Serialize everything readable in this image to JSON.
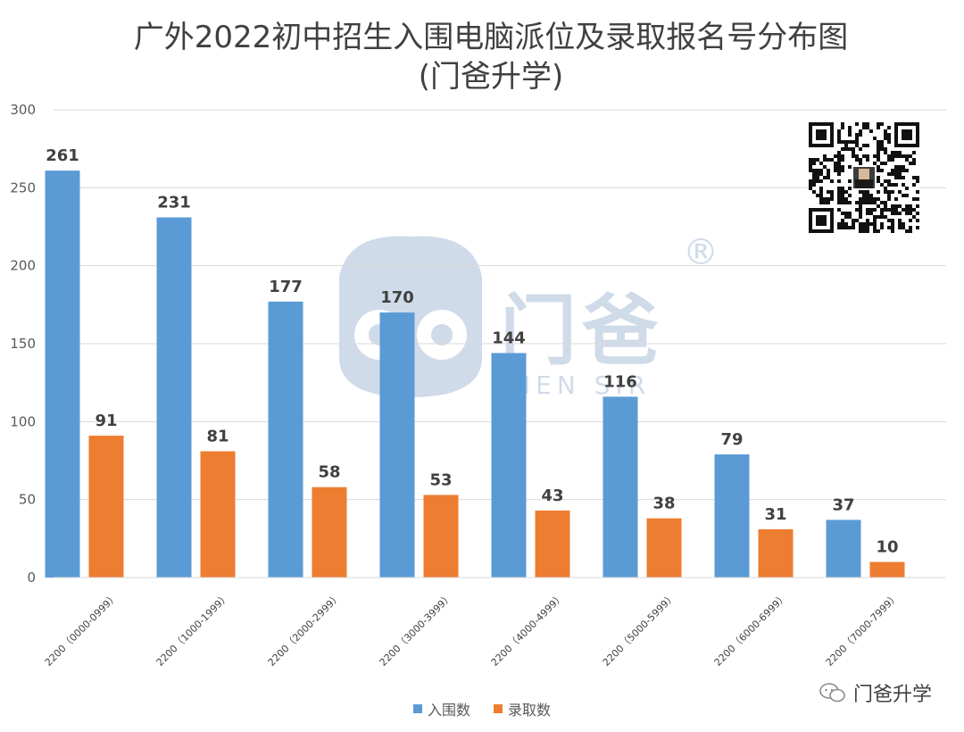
{
  "header": {
    "title_line1": "广外2022初中招生入围电脑派位及录取报名号分布图",
    "title_line2": "(门爸升学)"
  },
  "legend": {
    "series1": "入围数",
    "series2": "录取数"
  },
  "footer": {
    "brand": "门爸升学"
  },
  "watermark": {
    "main": "门爸",
    "sub": "MEN SIR",
    "mark": "®"
  },
  "colors": {
    "series1": "#5b9bd5",
    "series2": "#ed7d31",
    "grid": "#d9d9d9",
    "axis_text": "#595959",
    "label_text": "#404040"
  },
  "chart_data": {
    "type": "bar",
    "title": "广外2022初中招生入围电脑派位及录取报名号分布图 (门爸升学)",
    "categories": [
      "2200（0000-0999）",
      "2200（1000-1999）",
      "2200（2000-2999）",
      "2200（3000-3999）",
      "2200（4000-4999）",
      "2200（5000-5999）",
      "2200（6000-6999）",
      "2200（7000-7999）"
    ],
    "series": [
      {
        "name": "入围数",
        "values": [
          261,
          231,
          177,
          170,
          144,
          116,
          79,
          37
        ]
      },
      {
        "name": "录取数",
        "values": [
          91,
          81,
          58,
          53,
          43,
          38,
          31,
          10
        ]
      }
    ],
    "yticks": [
      "0",
      "50",
      "100",
      "150",
      "200",
      "250",
      "300"
    ],
    "ylim": [
      0,
      300
    ],
    "grid": true,
    "legend_position": "bottom",
    "data_labels": true
  }
}
